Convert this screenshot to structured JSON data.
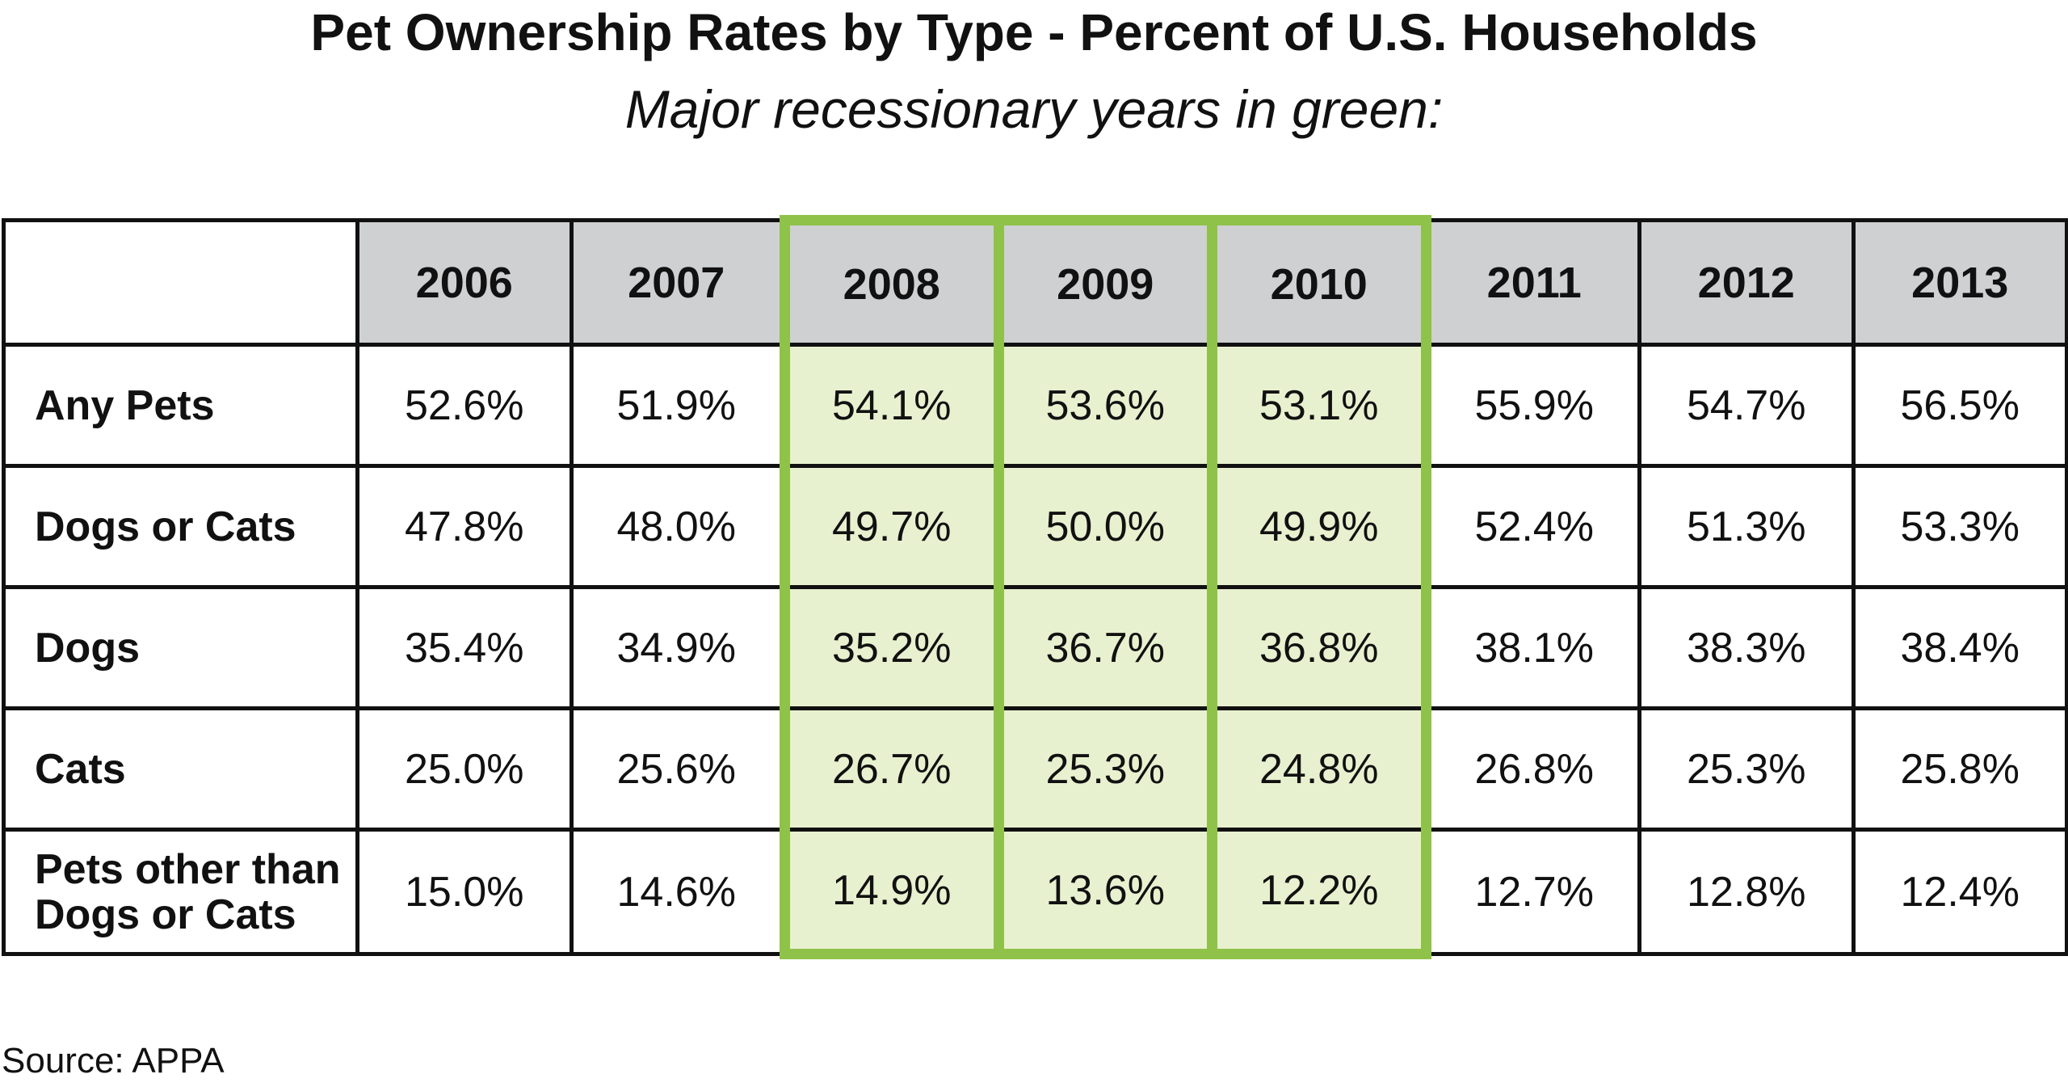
{
  "title": "Pet Ownership Rates by Type - Percent of U.S. Households",
  "subtitle": "Major recessionary years in green:",
  "source": "Source: APPA",
  "colors": {
    "header_fill": "#cfd0d2",
    "recession_fill": "#e8f1cf",
    "recession_border": "#8fc249",
    "grid_line": "#111111"
  },
  "chart_data": {
    "type": "table",
    "title": "Pet Ownership Rates by Type - Percent of U.S. Households",
    "subtitle": "Major recessionary years in green:",
    "columns": [
      "2006",
      "2007",
      "2008",
      "2009",
      "2010",
      "2011",
      "2012",
      "2013"
    ],
    "highlighted_columns": [
      "2008",
      "2009",
      "2010"
    ],
    "rows": [
      {
        "label": "Any Pets",
        "values": [
          "52.6%",
          "51.9%",
          "54.1%",
          "53.6%",
          "53.1%",
          "55.9%",
          "54.7%",
          "56.5%"
        ]
      },
      {
        "label": "Dogs or Cats",
        "values": [
          "47.8%",
          "48.0%",
          "49.7%",
          "50.0%",
          "49.9%",
          "52.4%",
          "51.3%",
          "53.3%"
        ]
      },
      {
        "label": "Dogs",
        "values": [
          "35.4%",
          "34.9%",
          "35.2%",
          "36.7%",
          "36.8%",
          "38.1%",
          "38.3%",
          "38.4%"
        ]
      },
      {
        "label": "Cats",
        "values": [
          "25.0%",
          "25.6%",
          "26.7%",
          "25.3%",
          "24.8%",
          "26.8%",
          "25.3%",
          "25.8%"
        ]
      },
      {
        "label": "Pets other than Dogs or Cats",
        "values": [
          "15.0%",
          "14.6%",
          "14.9%",
          "13.6%",
          "12.2%",
          "12.7%",
          "12.8%",
          "12.4%"
        ]
      }
    ]
  }
}
